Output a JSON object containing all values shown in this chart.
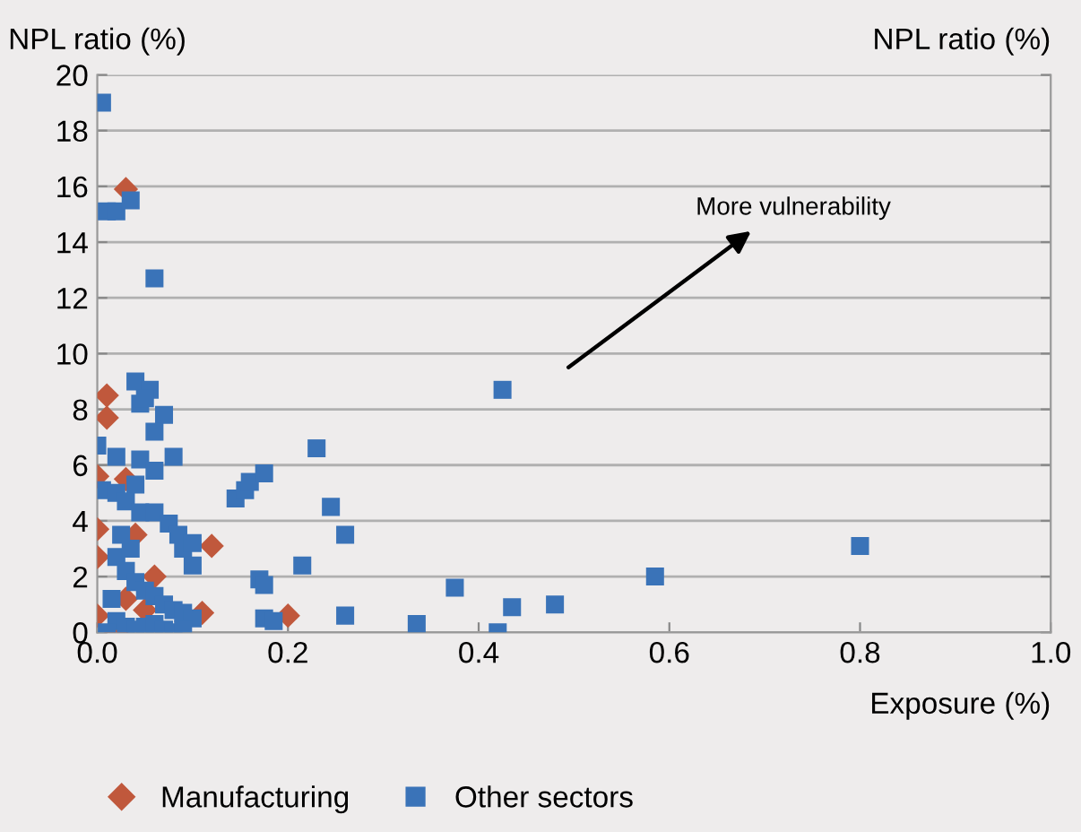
{
  "chart_data": {
    "type": "scatter",
    "ylabel": "NPL ratio (%)",
    "y2label": "NPL ratio (%)",
    "xlabel": "Exposure (%)",
    "xlim": [
      0,
      1.0
    ],
    "xticks": [
      {
        "value": 0,
        "label": "0.0"
      },
      0.2,
      0.4,
      0.6,
      0.8,
      {
        "value": 1.0,
        "label": "1.0"
      }
    ],
    "ylim": [
      0,
      20
    ],
    "yticks": [
      0,
      2,
      4,
      6,
      8,
      10,
      12,
      14,
      16,
      18,
      20
    ],
    "grid": "y",
    "legend": "bottom left",
    "annotations": [
      "More vulnerability"
    ],
    "series": [
      {
        "name": "Manufacturing",
        "color": "#c0583c",
        "marker": "diamond",
        "x": [
          0.03,
          0.01,
          0.01,
          0.0,
          0.03,
          0.0,
          0.0,
          0.12,
          0.2,
          0.11,
          0.0,
          0.02,
          0.05,
          0.04,
          0.06,
          0.03
        ],
        "values": [
          15.9,
          8.5,
          7.7,
          5.6,
          5.5,
          3.7,
          2.7,
          3.1,
          0.6,
          0.7,
          0.6,
          0.0,
          0.8,
          3.5,
          2.0,
          1.2
        ]
      },
      {
        "name": "Other sectors",
        "color": "#3a73b8",
        "marker": "square",
        "x": [
          0.005,
          0.01,
          0.02,
          0.035,
          0.06,
          0.04,
          0.045,
          0.055,
          0.05,
          0.07,
          0.06,
          0.0,
          0.02,
          0.045,
          0.06,
          0.08,
          0.04,
          0.005,
          0.02,
          0.03,
          0.045,
          0.06,
          0.075,
          0.085,
          0.09,
          0.1,
          0.1,
          0.02,
          0.03,
          0.04,
          0.05,
          0.06,
          0.07,
          0.08,
          0.09,
          0.1,
          0.02,
          0.03,
          0.04,
          0.05,
          0.06,
          0.07,
          0.08,
          0.09,
          0.01,
          0.015,
          0.025,
          0.035,
          0.145,
          0.155,
          0.16,
          0.175,
          0.17,
          0.175,
          0.215,
          0.23,
          0.245,
          0.26,
          0.175,
          0.185,
          0.26,
          0.335,
          0.375,
          0.42,
          0.425,
          0.435,
          0.48,
          0.585,
          0.8
        ],
        "values": [
          19.0,
          15.1,
          15.1,
          15.5,
          12.7,
          9.0,
          8.2,
          8.7,
          8.4,
          7.8,
          7.2,
          6.7,
          6.3,
          6.2,
          5.8,
          6.3,
          5.3,
          5.1,
          5.0,
          4.7,
          4.3,
          4.3,
          3.9,
          3.5,
          3.0,
          3.2,
          2.4,
          2.7,
          2.2,
          1.8,
          1.5,
          1.3,
          1.0,
          0.8,
          0.7,
          0.5,
          0.4,
          0.2,
          0.1,
          0.2,
          0.3,
          0.1,
          0.0,
          0.1,
          0.0,
          1.2,
          3.5,
          3.0,
          4.8,
          5.1,
          5.4,
          5.7,
          1.9,
          1.7,
          2.4,
          6.6,
          4.5,
          3.5,
          0.5,
          0.4,
          0.6,
          0.3,
          1.6,
          0.0,
          8.7,
          0.9,
          1.0,
          2.0,
          3.1
        ]
      }
    ]
  }
}
